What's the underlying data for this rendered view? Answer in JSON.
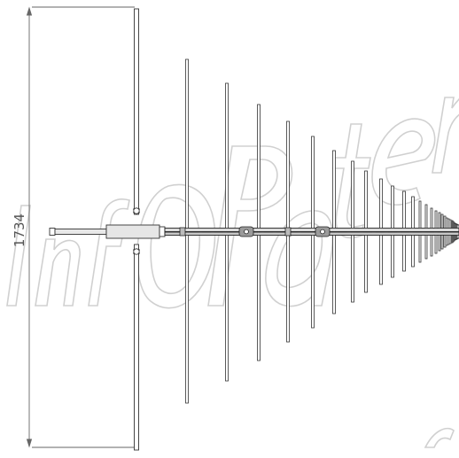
{
  "drawing": {
    "dimension_label": "1734",
    "watermark_text": "InfoPatent",
    "colors": {
      "line": "#333333",
      "element_fill": "#ffffff",
      "boom_fill": "#dcdcdc",
      "watermark": "#d0d0d0"
    },
    "element_count": 36
  }
}
